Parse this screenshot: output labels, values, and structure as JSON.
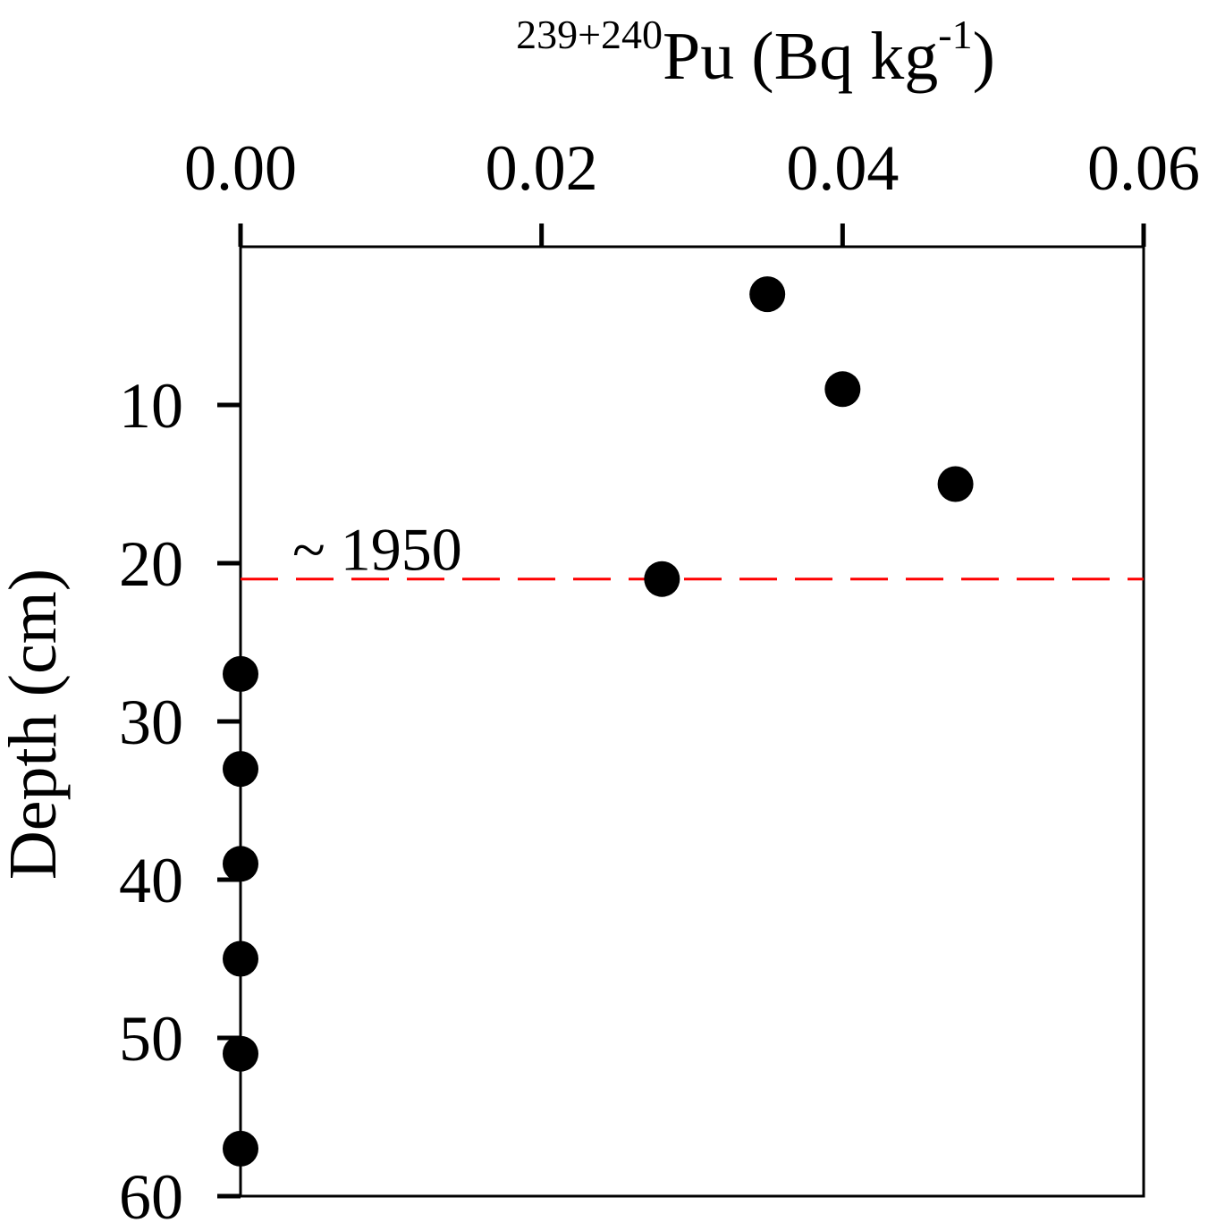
{
  "chart_data": {
    "type": "scatter",
    "title": "",
    "xlabel": {
      "superscript_prefix": "239+240",
      "main": "Pu (Bq kg",
      "superscript_unit": "-1",
      "suffix": ")"
    },
    "ylabel": "Depth (cm)",
    "x_axis_position": "top",
    "y_axis_inverted": true,
    "xlim": [
      0,
      0.06
    ],
    "ylim": [
      0,
      60
    ],
    "x_ticks": [
      0.0,
      0.02,
      0.04,
      0.06
    ],
    "x_tick_labels": [
      "0.00",
      "0.02",
      "0.04",
      "0.06"
    ],
    "y_ticks": [
      10,
      20,
      30,
      40,
      50,
      60
    ],
    "y_tick_labels": [
      "10",
      "20",
      "30",
      "40",
      "50",
      "60"
    ],
    "grid": false,
    "series": [
      {
        "marker": "filled-circle",
        "color": "#000000",
        "points": [
          {
            "x": 0.035,
            "y": 3
          },
          {
            "x": 0.04,
            "y": 9
          },
          {
            "x": 0.0475,
            "y": 15
          },
          {
            "x": 0.028,
            "y": 21
          },
          {
            "x": 0.0,
            "y": 27
          },
          {
            "x": 0.0,
            "y": 33
          },
          {
            "x": 0.0,
            "y": 39
          },
          {
            "x": 0.0,
            "y": 45
          },
          {
            "x": 0.0,
            "y": 51
          },
          {
            "x": 0.0,
            "y": 57
          }
        ]
      }
    ],
    "reference_line": {
      "orientation": "horizontal",
      "y": 21,
      "style": "dashed",
      "color": "#ff0000",
      "label": "~ 1950"
    }
  }
}
